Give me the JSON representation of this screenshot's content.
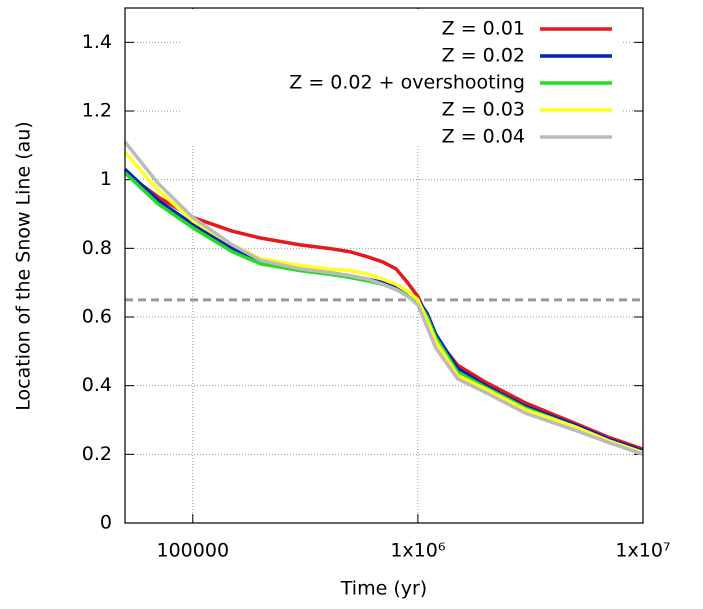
{
  "chart_data": {
    "type": "line",
    "xlabel": "Time (yr)",
    "ylabel": "Location of the Snow Line (au)",
    "x": [
      50000,
      70000,
      100000,
      150000,
      200000,
      300000,
      400000,
      500000,
      600000,
      700000,
      800000,
      900000,
      1000000,
      1100000,
      1200000,
      1500000,
      2000000,
      3000000,
      5000000,
      7000000,
      10000000
    ],
    "series": [
      {
        "name": "Z = 0.01",
        "color": "#e41a1c",
        "values": [
          1.02,
          0.95,
          0.89,
          0.85,
          0.83,
          0.81,
          0.8,
          0.79,
          0.775,
          0.76,
          0.74,
          0.7,
          0.66,
          0.6,
          0.54,
          0.46,
          0.41,
          0.35,
          0.29,
          0.25,
          0.215
        ]
      },
      {
        "name": "Z = 0.02",
        "color": "#0020c0",
        "values": [
          1.03,
          0.94,
          0.87,
          0.8,
          0.76,
          0.74,
          0.73,
          0.72,
          0.71,
          0.7,
          0.69,
          0.67,
          0.65,
          0.61,
          0.55,
          0.45,
          0.4,
          0.34,
          0.285,
          0.245,
          0.21
        ]
      },
      {
        "name": "Z = 0.02 + overshooting",
        "color": "#22dd22",
        "values": [
          1.02,
          0.93,
          0.86,
          0.79,
          0.755,
          0.735,
          0.725,
          0.715,
          0.705,
          0.695,
          0.68,
          0.665,
          0.645,
          0.6,
          0.54,
          0.44,
          0.395,
          0.335,
          0.28,
          0.24,
          0.205
        ]
      },
      {
        "name": "Z = 0.03",
        "color": "#ffff22",
        "values": [
          1.08,
          0.97,
          0.88,
          0.81,
          0.77,
          0.75,
          0.74,
          0.735,
          0.725,
          0.71,
          0.695,
          0.675,
          0.65,
          0.59,
          0.53,
          0.43,
          0.39,
          0.33,
          0.28,
          0.24,
          0.205
        ]
      },
      {
        "name": "Z = 0.04",
        "color": "#bbbbbb",
        "values": [
          1.11,
          0.99,
          0.89,
          0.81,
          0.765,
          0.74,
          0.73,
          0.72,
          0.71,
          0.695,
          0.68,
          0.66,
          0.635,
          0.57,
          0.51,
          0.42,
          0.38,
          0.32,
          0.27,
          0.235,
          0.2
        ]
      }
    ],
    "xlim": [
      50000,
      10000000
    ],
    "xlog": true,
    "xticks": [
      100000,
      {
        "value": 1000000,
        "label": "1x10⁶"
      },
      {
        "value": 10000000,
        "label": "1x10⁷"
      }
    ],
    "ylim": [
      0,
      1.5
    ],
    "yticks": [
      0,
      0.2,
      0.4,
      0.6,
      0.8,
      1,
      1.2,
      1.4
    ],
    "grid": true,
    "hline": {
      "value": 0.65,
      "color": "#999999"
    },
    "legend": "top-right"
  }
}
